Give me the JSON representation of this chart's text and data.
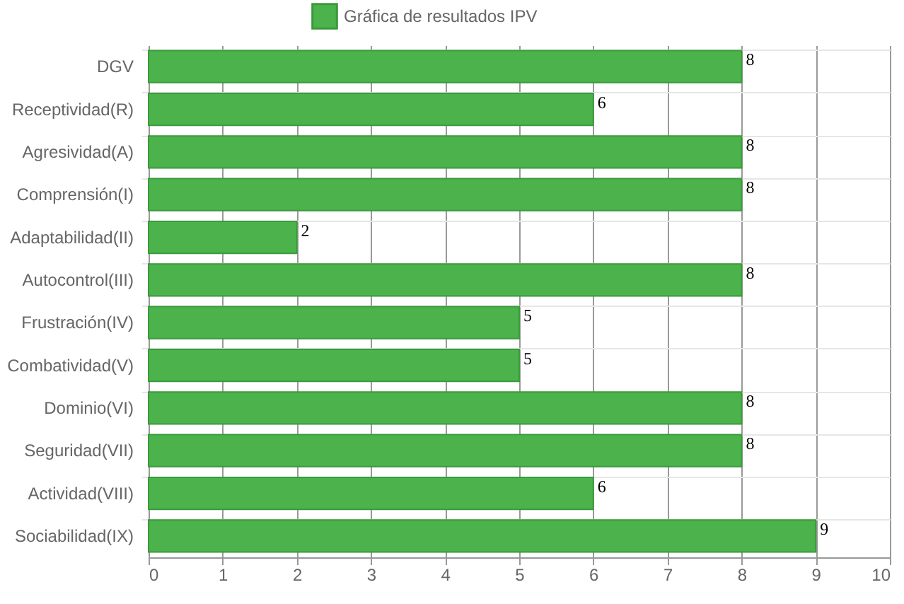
{
  "chart_data": {
    "type": "bar",
    "orientation": "horizontal",
    "categories": [
      "DGV",
      "Receptividad(R)",
      "Agresividad(A)",
      "Comprensión(I)",
      "Adaptabilidad(II)",
      "Autocontrol(III)",
      "Frustración(IV)",
      "Combatividad(V)",
      "Dominio(VI)",
      "Seguridad(VII)",
      "Actividad(VIII)",
      "Sociabilidad(IX)"
    ],
    "series": [
      {
        "name": "Gráfica de resultados IPV",
        "color": "#4cb34c",
        "values": [
          8,
          6,
          8,
          8,
          2,
          8,
          5,
          5,
          8,
          8,
          6,
          9
        ]
      }
    ],
    "xlim": [
      0,
      10
    ],
    "xticks": [
      0,
      1,
      2,
      3,
      4,
      5,
      6,
      7,
      8,
      9,
      10
    ],
    "grid": true,
    "legend": "top",
    "data_labels": true
  }
}
